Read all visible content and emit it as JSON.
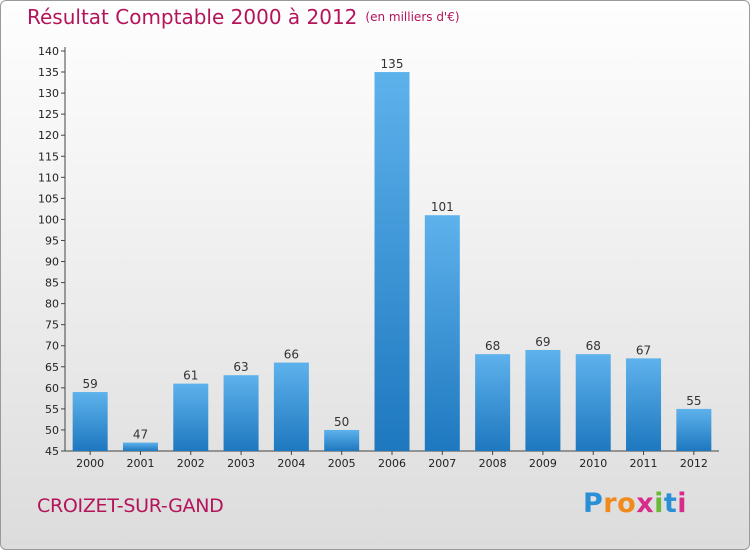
{
  "chart_data": {
    "type": "bar",
    "title": "Résultat Comptable 2000 à 2012",
    "unit_note": "(en milliers d'€)",
    "categories": [
      "2000",
      "2001",
      "2002",
      "2003",
      "2004",
      "2005",
      "2006",
      "2007",
      "2008",
      "2009",
      "2010",
      "2011",
      "2012"
    ],
    "values": [
      59,
      47,
      61,
      63,
      66,
      50,
      135,
      101,
      68,
      69,
      68,
      67,
      55
    ],
    "ylim": [
      45,
      140
    ],
    "ytick_step": 5,
    "xlabel": "",
    "ylabel": "",
    "grid": false
  },
  "footer": {
    "city": "CROIZET-SUR-GAND",
    "logo_letters": [
      "P",
      "r",
      "o",
      "x",
      "i",
      "t",
      "i"
    ],
    "logo_colors": [
      "#2a8fd6",
      "#f08a1c",
      "#f08a1c",
      "#d82c8a",
      "#6cb83a",
      "#2a8fd6",
      "#d82c8a"
    ]
  },
  "colors": {
    "bar_light": "#5eb2ec",
    "bar_dark": "#1e78bf",
    "title": "#b4145a"
  }
}
